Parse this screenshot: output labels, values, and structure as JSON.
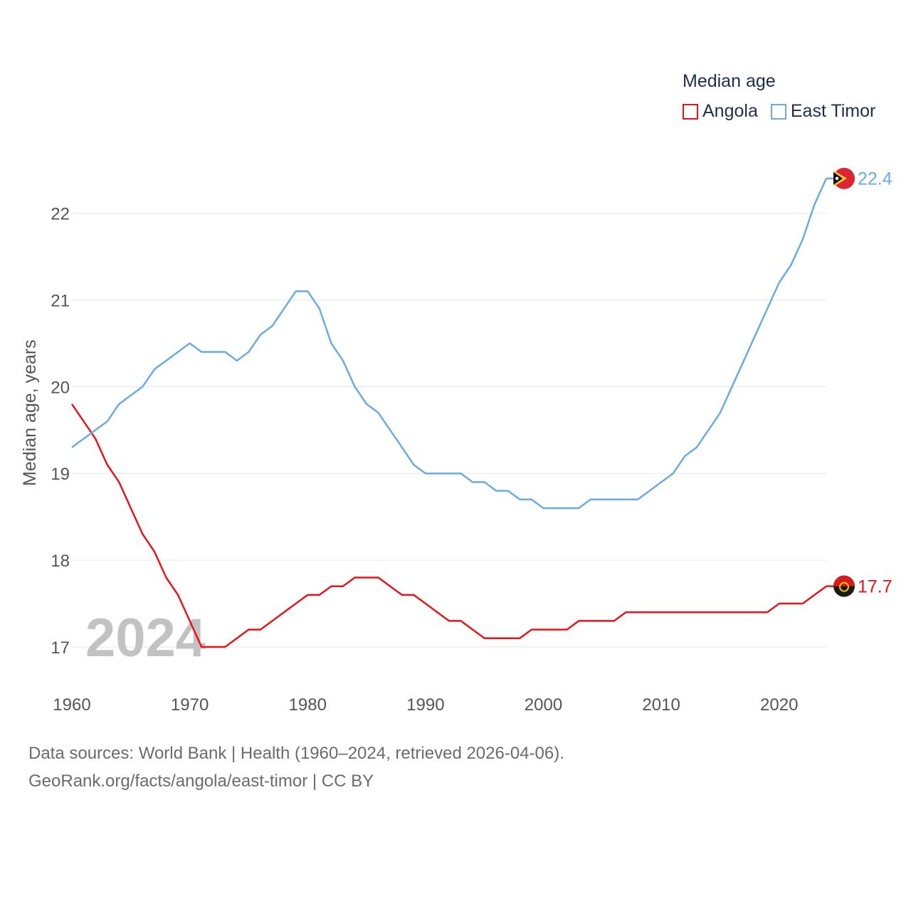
{
  "legend": {
    "title": "Median age",
    "items": [
      {
        "label": "Angola",
        "color": "#e8141a"
      },
      {
        "label": "East Timor",
        "color": "#6aabe4"
      }
    ]
  },
  "footer": {
    "line1": "Data sources: World Bank | Health (1960–2024, retrieved 2026-04-06).",
    "line2": "GeoRank.org/facts/angola/east-timor | CC BY"
  },
  "chart_data": {
    "type": "line",
    "title": "Median age",
    "ylabel": "Median age, years",
    "xlabel": "",
    "year_watermark": "2024",
    "xlim": [
      1960,
      2024
    ],
    "ylim": [
      16.5,
      22.6
    ],
    "x_ticks": [
      1960,
      1970,
      1980,
      1990,
      2000,
      2010,
      2020
    ],
    "y_ticks": [
      17,
      18,
      19,
      20,
      21,
      22
    ],
    "grid": true,
    "legend_position": "top-right",
    "x": [
      1960,
      1961,
      1962,
      1963,
      1964,
      1965,
      1966,
      1967,
      1968,
      1969,
      1970,
      1971,
      1972,
      1973,
      1974,
      1975,
      1976,
      1977,
      1978,
      1979,
      1980,
      1981,
      1982,
      1983,
      1984,
      1985,
      1986,
      1987,
      1988,
      1989,
      1990,
      1991,
      1992,
      1993,
      1994,
      1995,
      1996,
      1997,
      1998,
      1999,
      2000,
      2001,
      2002,
      2003,
      2004,
      2005,
      2006,
      2007,
      2008,
      2009,
      2010,
      2011,
      2012,
      2013,
      2014,
      2015,
      2016,
      2017,
      2018,
      2019,
      2020,
      2021,
      2022,
      2023,
      2024
    ],
    "series": [
      {
        "name": "Angola",
        "color": "#e8141a",
        "end_label": "17.7",
        "values": [
          19.8,
          19.6,
          19.4,
          19.1,
          18.9,
          18.6,
          18.3,
          18.1,
          17.8,
          17.6,
          17.3,
          17.0,
          17.0,
          17.0,
          17.1,
          17.2,
          17.2,
          17.3,
          17.4,
          17.5,
          17.6,
          17.6,
          17.7,
          17.7,
          17.8,
          17.8,
          17.8,
          17.7,
          17.6,
          17.6,
          17.5,
          17.4,
          17.3,
          17.3,
          17.2,
          17.1,
          17.1,
          17.1,
          17.1,
          17.2,
          17.2,
          17.2,
          17.2,
          17.3,
          17.3,
          17.3,
          17.3,
          17.4,
          17.4,
          17.4,
          17.4,
          17.4,
          17.4,
          17.4,
          17.4,
          17.4,
          17.4,
          17.4,
          17.4,
          17.4,
          17.5,
          17.5,
          17.5,
          17.6,
          17.7
        ]
      },
      {
        "name": "East Timor",
        "color": "#6aabe4",
        "end_label": "22.4",
        "values": [
          19.3,
          19.4,
          19.5,
          19.6,
          19.8,
          19.9,
          20.0,
          20.2,
          20.3,
          20.4,
          20.5,
          20.4,
          20.4,
          20.4,
          20.3,
          20.4,
          20.6,
          20.7,
          20.9,
          21.1,
          21.1,
          20.9,
          20.5,
          20.3,
          20.0,
          19.8,
          19.7,
          19.5,
          19.3,
          19.1,
          19.0,
          19.0,
          19.0,
          19.0,
          18.9,
          18.9,
          18.8,
          18.8,
          18.7,
          18.7,
          18.6,
          18.6,
          18.6,
          18.6,
          18.7,
          18.7,
          18.7,
          18.7,
          18.7,
          18.8,
          18.9,
          19.0,
          19.2,
          19.3,
          19.5,
          19.7,
          20.0,
          20.3,
          20.6,
          20.9,
          21.2,
          21.4,
          21.7,
          22.1,
          22.4
        ]
      }
    ]
  }
}
